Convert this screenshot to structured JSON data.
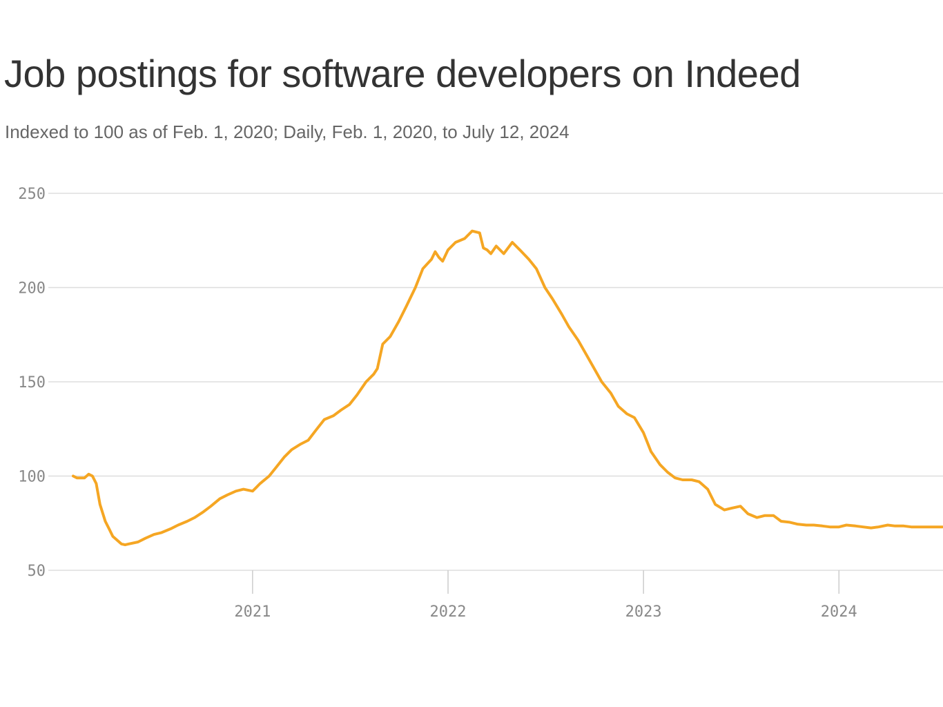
{
  "title": "Job postings for software developers on Indeed",
  "subtitle": "Indexed to 100 as of Feb. 1, 2020; Daily, Feb. 1, 2020, to July 12, 2024",
  "chart_data": {
    "type": "line",
    "title": "Job postings for software developers on Indeed",
    "subtitle": "Indexed to 100 as of Feb. 1, 2020; Daily, Feb. 1, 2020, to July 12, 2024",
    "xlabel": "",
    "ylabel": "",
    "x_ticks": [
      "2021",
      "2022",
      "2023",
      "2024"
    ],
    "y_ticks": [
      50,
      100,
      150,
      200,
      250
    ],
    "ylim": [
      50,
      250
    ],
    "xlim": [
      "2020-02-01",
      "2024-07-12"
    ],
    "grid": "horizontal",
    "color": "#f5a623",
    "series": [
      {
        "x": [
          "2020-02-01",
          "2020-02-08",
          "2020-02-22",
          "2020-03-01",
          "2020-03-08",
          "2020-03-15",
          "2020-03-22",
          "2020-04-01",
          "2020-04-08",
          "2020-04-15",
          "2020-05-01",
          "2020-05-08",
          "2020-05-15",
          "2020-06-01",
          "2020-06-15",
          "2020-07-01",
          "2020-07-15",
          "2020-08-01",
          "2020-08-15",
          "2020-09-01",
          "2020-09-15",
          "2020-10-01",
          "2020-10-15",
          "2020-11-01",
          "2020-11-15",
          "2020-12-01",
          "2020-12-15",
          "2021-01-01",
          "2021-01-08",
          "2021-01-15",
          "2021-02-01",
          "2021-02-15",
          "2021-03-01",
          "2021-03-15",
          "2021-04-01",
          "2021-04-15",
          "2021-05-01",
          "2021-05-15",
          "2021-06-01",
          "2021-06-15",
          "2021-07-01",
          "2021-07-15",
          "2021-08-01",
          "2021-08-15",
          "2021-08-22",
          "2021-09-01",
          "2021-09-15",
          "2021-10-01",
          "2021-10-15",
          "2021-11-01",
          "2021-11-15",
          "2021-12-01",
          "2021-12-08",
          "2021-12-15",
          "2021-12-22",
          "2022-01-01",
          "2022-01-15",
          "2022-02-01",
          "2022-02-15",
          "2022-03-01",
          "2022-03-08",
          "2022-03-15",
          "2022-03-22",
          "2022-04-01",
          "2022-04-15",
          "2022-05-01",
          "2022-05-15",
          "2022-06-01",
          "2022-06-15",
          "2022-07-01",
          "2022-07-15",
          "2022-08-01",
          "2022-08-15",
          "2022-09-01",
          "2022-09-15",
          "2022-10-01",
          "2022-10-15",
          "2022-11-01",
          "2022-11-15",
          "2022-12-01",
          "2022-12-15",
          "2023-01-01",
          "2023-01-15",
          "2023-02-01",
          "2023-02-15",
          "2023-03-01",
          "2023-03-15",
          "2023-04-01",
          "2023-04-15",
          "2023-05-01",
          "2023-05-15",
          "2023-06-01",
          "2023-06-15",
          "2023-07-01",
          "2023-07-15",
          "2023-08-01",
          "2023-08-15",
          "2023-09-01",
          "2023-09-15",
          "2023-10-01",
          "2023-10-15",
          "2023-11-01",
          "2023-11-15",
          "2023-12-01",
          "2023-12-15",
          "2024-01-01",
          "2024-01-15",
          "2024-02-01",
          "2024-02-15",
          "2024-03-01",
          "2024-03-15",
          "2024-04-01",
          "2024-04-15",
          "2024-05-01",
          "2024-05-15",
          "2024-06-01",
          "2024-06-15",
          "2024-07-01",
          "2024-07-12"
        ],
        "y": [
          100,
          99,
          99,
          101,
          100,
          96,
          85,
          76,
          72,
          68,
          64,
          63.5,
          64,
          65,
          67,
          69,
          70,
          72,
          74,
          76,
          78,
          81,
          84,
          88,
          90,
          92,
          93,
          92,
          94,
          96,
          100,
          105,
          110,
          114,
          117,
          119,
          125,
          130,
          132,
          135,
          138,
          143,
          150,
          154,
          157,
          170,
          174,
          182,
          190,
          200,
          210,
          215,
          219,
          216,
          214,
          220,
          224,
          226,
          230,
          229,
          221,
          220,
          218,
          222,
          218,
          224,
          220,
          215,
          210,
          200,
          194,
          186,
          179,
          172,
          165,
          157,
          150,
          144,
          137,
          133,
          131,
          123,
          113,
          106,
          102,
          99,
          98,
          98,
          97,
          93,
          85,
          82,
          83,
          84,
          80,
          78,
          79,
          79,
          76,
          75.5,
          74.5,
          74,
          74,
          73.5,
          73,
          73,
          74,
          73.5,
          73,
          72.5,
          73,
          74,
          73.5,
          73.5,
          73,
          73,
          73,
          73,
          73
        ]
      }
    ]
  }
}
